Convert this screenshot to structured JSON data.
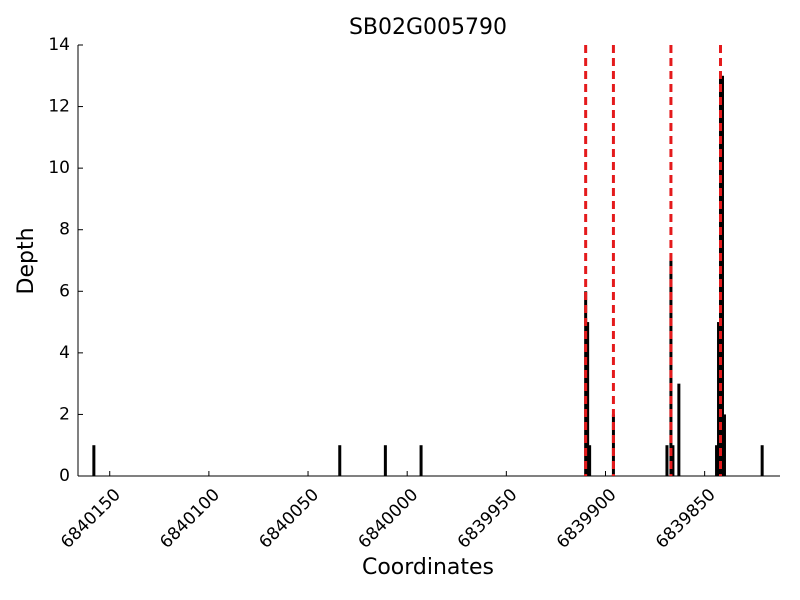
{
  "chart_data": {
    "type": "bar",
    "title": "SB02G005790",
    "x_label": "Coordinates",
    "y_label": "Depth",
    "x": [
      6840158,
      6840034,
      6840011,
      6839993,
      6839910,
      6839909,
      6839908,
      6839896,
      6839869,
      6839867,
      6839866,
      6839863,
      6839844,
      6839843,
      6839842,
      6839841,
      6839840,
      6839821
    ],
    "values": [
      1,
      1,
      1,
      1,
      6,
      5,
      1,
      2,
      1,
      7,
      1,
      3,
      1,
      5,
      13,
      13,
      2,
      1
    ],
    "color": "#000000",
    "xlim": [
      6840166,
      6839812
    ],
    "xticks": [
      6840150,
      6840100,
      6840050,
      6840000,
      6839950,
      6839900,
      6839850
    ],
    "ylim": [
      0,
      14
    ],
    "yticks": [
      0,
      2,
      4,
      6,
      8,
      10,
      12,
      14
    ],
    "grid": false,
    "vlines": [
      6839910,
      6839896,
      6839867,
      6839842
    ],
    "vline_color": "#e41a1c"
  }
}
